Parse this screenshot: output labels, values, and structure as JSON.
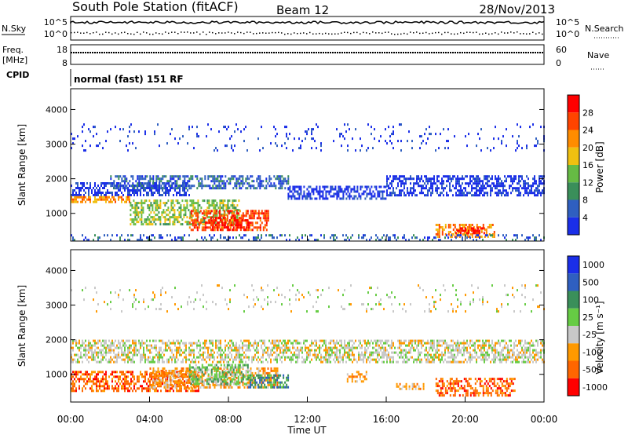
{
  "header": {
    "station": "South Pole Station (fitACF)",
    "beam": "Beam 12",
    "date": "28/Nov/2013"
  },
  "sky_panel": {
    "left_label": "N.Sky",
    "right_label": "N.Search",
    "ticks_left": [
      "10^5",
      "10^0"
    ],
    "ticks_right": [
      "10^5",
      "10^0"
    ]
  },
  "freq_panel": {
    "left_label_top": "Freq.",
    "left_label_bottom": "[MHz]",
    "right_label": "Nave",
    "ticks_left": [
      "18",
      "8"
    ],
    "ticks_right": [
      "60",
      "0"
    ]
  },
  "cpid": {
    "label": "CPID",
    "value": "normal (fast) 151 RF"
  },
  "colors": {
    "power": [
      "#1a2ee8",
      "#2f5fc0",
      "#3a8f5a",
      "#66bb44",
      "#f0c010",
      "#ff8c00",
      "#ff4400",
      "#ff0000"
    ],
    "velocity": [
      "#1a2ee8",
      "#2f5fc0",
      "#3a8f5a",
      "#66cc44",
      "#c8c8c8",
      "#ff9900",
      "#ff6600",
      "#ff0000"
    ]
  },
  "chart_data": [
    {
      "type": "heatmap",
      "xlabel": "Time UT",
      "ylabel": "Slant Range [km]",
      "ylim": [
        200,
        4600
      ],
      "xlim": [
        0,
        24
      ],
      "y_ticks": [
        "1000",
        "2000",
        "3000",
        "4000"
      ],
      "colorbar": {
        "label": "Power [dB]",
        "ticks": [
          "4",
          "8",
          "12",
          "16",
          "20",
          "24",
          "28"
        ]
      },
      "regions": [
        {
          "t0": 0.0,
          "t1": 6.0,
          "r0": 1550,
          "r1": 1900,
          "level": 0
        },
        {
          "t0": 0.0,
          "t1": 3.0,
          "r0": 1300,
          "r1": 1500,
          "level": 5
        },
        {
          "t0": 2.0,
          "t1": 11.0,
          "r0": 1750,
          "r1": 2100,
          "level": 1
        },
        {
          "t0": 3.0,
          "t1": 8.5,
          "r0": 700,
          "r1": 1400,
          "level": 3
        },
        {
          "t0": 6.0,
          "t1": 10.0,
          "r0": 500,
          "r1": 1100,
          "level": 6
        },
        {
          "t0": 7.0,
          "t1": 9.0,
          "r0": 550,
          "r1": 900,
          "level": 7
        },
        {
          "t0": 11.0,
          "t1": 16.0,
          "r0": 1450,
          "r1": 1800,
          "level": 0
        },
        {
          "t0": 16.0,
          "t1": 24.0,
          "r0": 1500,
          "r1": 2100,
          "level": 0
        },
        {
          "t0": 18.5,
          "t1": 21.5,
          "r0": 350,
          "r1": 700,
          "level": 5
        },
        {
          "t0": 19.5,
          "t1": 21.0,
          "r0": 450,
          "r1": 600,
          "level": 7
        },
        {
          "t0": 0.0,
          "t1": 24.0,
          "r0": 2800,
          "r1": 3600,
          "level": 0
        },
        {
          "t0": 0.0,
          "t1": 24.0,
          "r0": 250,
          "r1": 400,
          "level": 1
        }
      ]
    },
    {
      "type": "heatmap",
      "xlabel": "Time UT",
      "ylabel": "Slant Range [km]",
      "ylim": [
        200,
        4600
      ],
      "xlim": [
        0,
        24
      ],
      "x_ticks": [
        "00:00",
        "04:00",
        "08:00",
        "12:00",
        "16:00",
        "20:00",
        "00:00"
      ],
      "y_ticks": [
        "1000",
        "2000",
        "3000",
        "4000"
      ],
      "colorbar": {
        "label": "Velocity [m s⁻¹]",
        "ticks": [
          "1000",
          "500",
          "100",
          "25",
          "-25",
          "-100",
          "-500",
          "-1000"
        ]
      },
      "regions": [
        {
          "t0": 0.0,
          "t1": 24.0,
          "r0": 1350,
          "r1": 2000,
          "level": 4
        },
        {
          "t0": 0.0,
          "t1": 6.5,
          "r0": 550,
          "r1": 1100,
          "level": 6
        },
        {
          "t0": 4.0,
          "t1": 10.5,
          "r0": 600,
          "r1": 1200,
          "level": 5
        },
        {
          "t0": 6.0,
          "t1": 9.0,
          "r0": 700,
          "r1": 1300,
          "level": 3
        },
        {
          "t0": 9.0,
          "t1": 11.0,
          "r0": 650,
          "r1": 1000,
          "level": 2
        },
        {
          "t0": 14.0,
          "t1": 15.0,
          "r0": 800,
          "r1": 1100,
          "level": 5
        },
        {
          "t0": 16.5,
          "t1": 18.0,
          "r0": 550,
          "r1": 750,
          "level": 5
        },
        {
          "t0": 18.5,
          "t1": 22.5,
          "r0": 400,
          "r1": 900,
          "level": 6
        },
        {
          "t0": 0.0,
          "t1": 24.0,
          "r0": 2800,
          "r1": 3600,
          "level": 4
        }
      ]
    }
  ]
}
